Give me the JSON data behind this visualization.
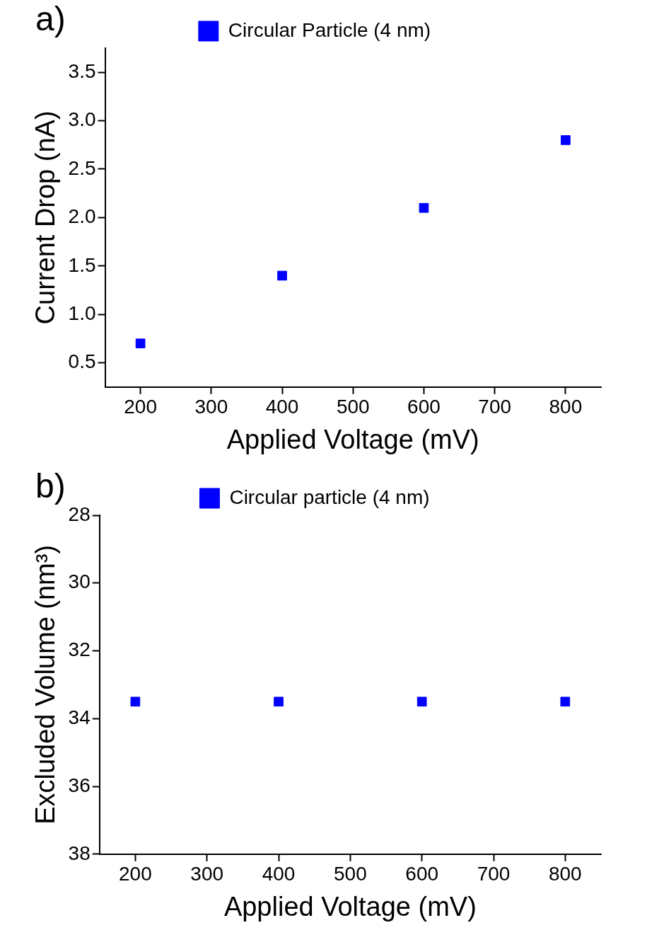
{
  "chart_data": [
    {
      "type": "scatter",
      "title": "a)",
      "xlabel": "Applied Voltage (mV)",
      "ylabel": "Current Drop (nA)",
      "x": [
        200,
        400,
        600,
        800
      ],
      "series": [
        {
          "name": "Circular Particle (4 nm)",
          "color": "#0000ff",
          "values": [
            0.7,
            1.4,
            2.1,
            2.8
          ]
        }
      ],
      "xlim": [
        150,
        850
      ],
      "xticks": [
        200,
        300,
        400,
        500,
        600,
        700,
        800
      ],
      "ylim": [
        0.25,
        3.75
      ],
      "yticks": [
        0.5,
        {
          "value": 1,
          "label": "1.0"
        },
        1.5,
        {
          "value": 2,
          "label": "2.0"
        },
        2.5,
        {
          "value": 3,
          "label": "3.0"
        },
        3.5
      ],
      "grid": false,
      "legend": "top",
      "marker": "square"
    },
    {
      "type": "scatter",
      "title": "b)",
      "xlabel": "Applied Voltage (mV)",
      "ylabel": "Excluded Volume (nm³)",
      "x": [
        200,
        400,
        600,
        800
      ],
      "series": [
        {
          "name": "Circular particle (4 nm)",
          "color": "#0000ff",
          "values": [
            33.5,
            33.5,
            33.5,
            33.5
          ]
        }
      ],
      "xlim": [
        150,
        850
      ],
      "xticks": [
        200,
        300,
        400,
        500,
        600,
        700,
        800
      ],
      "ylim": [
        38,
        28
      ],
      "yticks": [
        28,
        30,
        32,
        34,
        36,
        38
      ],
      "grid": false,
      "legend": "top",
      "marker": "square"
    }
  ]
}
